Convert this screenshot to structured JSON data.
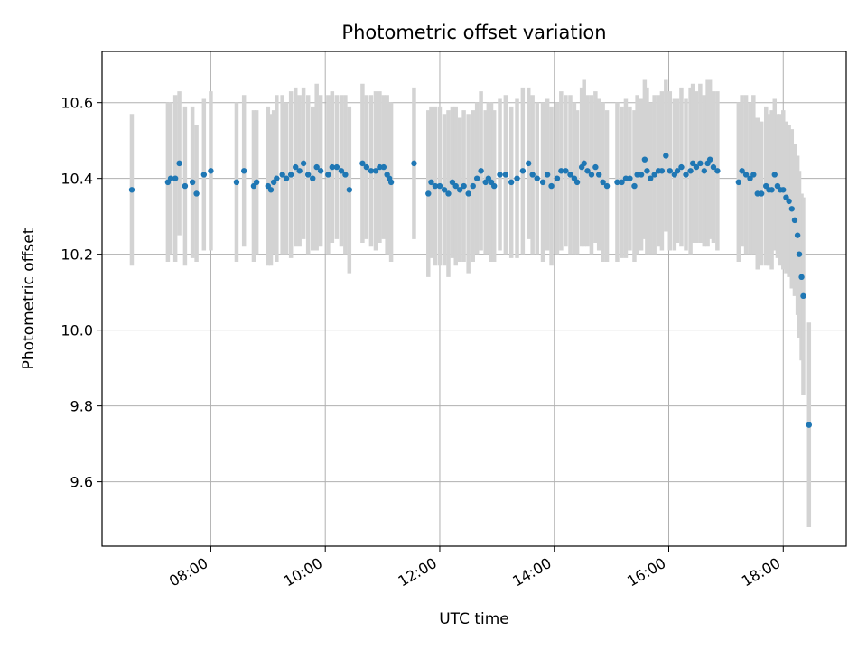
{
  "chart_data": {
    "type": "scatter",
    "title": "Photometric offset variation",
    "xlabel": "UTC time",
    "ylabel": "Photometric offset",
    "x_unit": "hours UTC",
    "xlim": [
      6.1,
      19.1
    ],
    "ylim": [
      9.43,
      10.735
    ],
    "x_ticks": [
      {
        "value": 8,
        "label": "08:00"
      },
      {
        "value": 10,
        "label": "10:00"
      },
      {
        "value": 12,
        "label": "12:00"
      },
      {
        "value": 14,
        "label": "14:00"
      },
      {
        "value": 16,
        "label": "16:00"
      },
      {
        "value": 18,
        "label": "18:00"
      }
    ],
    "y_ticks": [
      {
        "value": 9.6,
        "label": "9.6"
      },
      {
        "value": 9.8,
        "label": "9.8"
      },
      {
        "value": 10.0,
        "label": "10.0"
      },
      {
        "value": 10.2,
        "label": "10.2"
      },
      {
        "value": 10.4,
        "label": "10.4"
      },
      {
        "value": 10.6,
        "label": "10.6"
      }
    ],
    "grid": true,
    "marker_color": "#1f77b4",
    "errorbar_color": "#d3d3d3",
    "series": [
      {
        "points": [
          [
            6.62,
            10.37,
            0.2
          ],
          [
            7.25,
            10.39,
            0.21
          ],
          [
            7.3,
            10.4,
            0.2
          ],
          [
            7.38,
            10.4,
            0.22
          ],
          [
            7.45,
            10.44,
            0.19
          ],
          [
            7.55,
            10.38,
            0.21
          ],
          [
            7.68,
            10.39,
            0.2
          ],
          [
            7.75,
            10.36,
            0.18
          ],
          [
            7.88,
            10.41,
            0.2
          ],
          [
            8.0,
            10.42,
            0.21
          ],
          [
            8.45,
            10.39,
            0.21
          ],
          [
            8.58,
            10.42,
            0.2
          ],
          [
            8.75,
            10.38,
            0.2
          ],
          [
            8.8,
            10.39,
            0.19
          ],
          [
            9.0,
            10.38,
            0.21
          ],
          [
            9.05,
            10.37,
            0.2
          ],
          [
            9.1,
            10.39,
            0.19
          ],
          [
            9.15,
            10.4,
            0.22
          ],
          [
            9.25,
            10.41,
            0.21
          ],
          [
            9.32,
            10.4,
            0.2
          ],
          [
            9.4,
            10.41,
            0.22
          ],
          [
            9.48,
            10.43,
            0.21
          ],
          [
            9.55,
            10.42,
            0.2
          ],
          [
            9.62,
            10.44,
            0.2
          ],
          [
            9.7,
            10.41,
            0.21
          ],
          [
            9.78,
            10.4,
            0.19
          ],
          [
            9.85,
            10.43,
            0.22
          ],
          [
            9.92,
            10.42,
            0.2
          ],
          [
            10.05,
            10.41,
            0.21
          ],
          [
            10.12,
            10.43,
            0.2
          ],
          [
            10.2,
            10.43,
            0.19
          ],
          [
            10.28,
            10.42,
            0.2
          ],
          [
            10.35,
            10.41,
            0.21
          ],
          [
            10.42,
            10.37,
            0.22
          ],
          [
            10.65,
            10.44,
            0.21
          ],
          [
            10.72,
            10.43,
            0.19
          ],
          [
            10.8,
            10.42,
            0.2
          ],
          [
            10.88,
            10.42,
            0.21
          ],
          [
            10.95,
            10.43,
            0.2
          ],
          [
            11.02,
            10.43,
            0.19
          ],
          [
            11.08,
            10.41,
            0.21
          ],
          [
            11.12,
            10.4,
            0.2
          ],
          [
            11.15,
            10.39,
            0.21
          ],
          [
            11.55,
            10.44,
            0.2
          ],
          [
            11.8,
            10.36,
            0.22
          ],
          [
            11.85,
            10.39,
            0.2
          ],
          [
            11.92,
            10.38,
            0.21
          ],
          [
            12.0,
            10.38,
            0.21
          ],
          [
            12.08,
            10.37,
            0.2
          ],
          [
            12.15,
            10.36,
            0.22
          ],
          [
            12.22,
            10.39,
            0.2
          ],
          [
            12.28,
            10.38,
            0.21
          ],
          [
            12.35,
            10.37,
            0.19
          ],
          [
            12.42,
            10.38,
            0.2
          ],
          [
            12.5,
            10.36,
            0.21
          ],
          [
            12.58,
            10.38,
            0.2
          ],
          [
            12.65,
            10.4,
            0.2
          ],
          [
            12.72,
            10.42,
            0.21
          ],
          [
            12.8,
            10.39,
            0.19
          ],
          [
            12.85,
            10.4,
            0.2
          ],
          [
            12.9,
            10.39,
            0.21
          ],
          [
            12.95,
            10.38,
            0.2
          ],
          [
            13.05,
            10.41,
            0.2
          ],
          [
            13.15,
            10.41,
            0.21
          ],
          [
            13.25,
            10.39,
            0.2
          ],
          [
            13.35,
            10.4,
            0.21
          ],
          [
            13.45,
            10.42,
            0.22
          ],
          [
            13.55,
            10.44,
            0.2
          ],
          [
            13.62,
            10.41,
            0.21
          ],
          [
            13.7,
            10.4,
            0.2
          ],
          [
            13.8,
            10.39,
            0.21
          ],
          [
            13.88,
            10.41,
            0.2
          ],
          [
            13.95,
            10.38,
            0.21
          ],
          [
            14.05,
            10.4,
            0.2
          ],
          [
            14.12,
            10.42,
            0.21
          ],
          [
            14.2,
            10.42,
            0.2
          ],
          [
            14.28,
            10.41,
            0.21
          ],
          [
            14.35,
            10.4,
            0.2
          ],
          [
            14.4,
            10.39,
            0.19
          ],
          [
            14.48,
            10.43,
            0.21
          ],
          [
            14.52,
            10.44,
            0.22
          ],
          [
            14.58,
            10.42,
            0.2
          ],
          [
            14.65,
            10.41,
            0.21
          ],
          [
            14.72,
            10.43,
            0.2
          ],
          [
            14.78,
            10.41,
            0.2
          ],
          [
            14.85,
            10.39,
            0.21
          ],
          [
            14.92,
            10.38,
            0.2
          ],
          [
            15.1,
            10.39,
            0.21
          ],
          [
            15.18,
            10.39,
            0.2
          ],
          [
            15.25,
            10.4,
            0.21
          ],
          [
            15.32,
            10.4,
            0.19
          ],
          [
            15.4,
            10.38,
            0.2
          ],
          [
            15.45,
            10.41,
            0.21
          ],
          [
            15.52,
            10.41,
            0.2
          ],
          [
            15.58,
            10.45,
            0.21
          ],
          [
            15.62,
            10.42,
            0.22
          ],
          [
            15.68,
            10.4,
            0.2
          ],
          [
            15.75,
            10.41,
            0.21
          ],
          [
            15.82,
            10.42,
            0.2
          ],
          [
            15.88,
            10.42,
            0.21
          ],
          [
            15.95,
            10.46,
            0.2
          ],
          [
            16.02,
            10.42,
            0.21
          ],
          [
            16.1,
            10.41,
            0.2
          ],
          [
            16.15,
            10.42,
            0.19
          ],
          [
            16.22,
            10.43,
            0.21
          ],
          [
            16.3,
            10.41,
            0.2
          ],
          [
            16.38,
            10.42,
            0.22
          ],
          [
            16.42,
            10.44,
            0.21
          ],
          [
            16.48,
            10.43,
            0.2
          ],
          [
            16.55,
            10.44,
            0.21
          ],
          [
            16.62,
            10.42,
            0.2
          ],
          [
            16.68,
            10.44,
            0.22
          ],
          [
            16.72,
            10.45,
            0.21
          ],
          [
            16.78,
            10.43,
            0.2
          ],
          [
            16.85,
            10.42,
            0.21
          ],
          [
            17.22,
            10.39,
            0.21
          ],
          [
            17.28,
            10.42,
            0.2
          ],
          [
            17.35,
            10.41,
            0.21
          ],
          [
            17.42,
            10.4,
            0.2
          ],
          [
            17.48,
            10.41,
            0.21
          ],
          [
            17.55,
            10.36,
            0.2
          ],
          [
            17.62,
            10.36,
            0.19
          ],
          [
            17.7,
            10.38,
            0.21
          ],
          [
            17.75,
            10.37,
            0.2
          ],
          [
            17.8,
            10.37,
            0.21
          ],
          [
            17.85,
            10.41,
            0.2
          ],
          [
            17.9,
            10.38,
            0.19
          ],
          [
            17.95,
            10.37,
            0.2
          ],
          [
            18.0,
            10.37,
            0.21
          ],
          [
            18.05,
            10.35,
            0.2
          ],
          [
            18.1,
            10.34,
            0.2
          ],
          [
            18.15,
            10.32,
            0.21
          ],
          [
            18.2,
            10.29,
            0.2
          ],
          [
            18.25,
            10.25,
            0.21
          ],
          [
            18.28,
            10.2,
            0.22
          ],
          [
            18.32,
            10.14,
            0.22
          ],
          [
            18.35,
            10.09,
            0.26
          ],
          [
            18.45,
            9.75,
            0.27
          ]
        ]
      }
    ]
  }
}
